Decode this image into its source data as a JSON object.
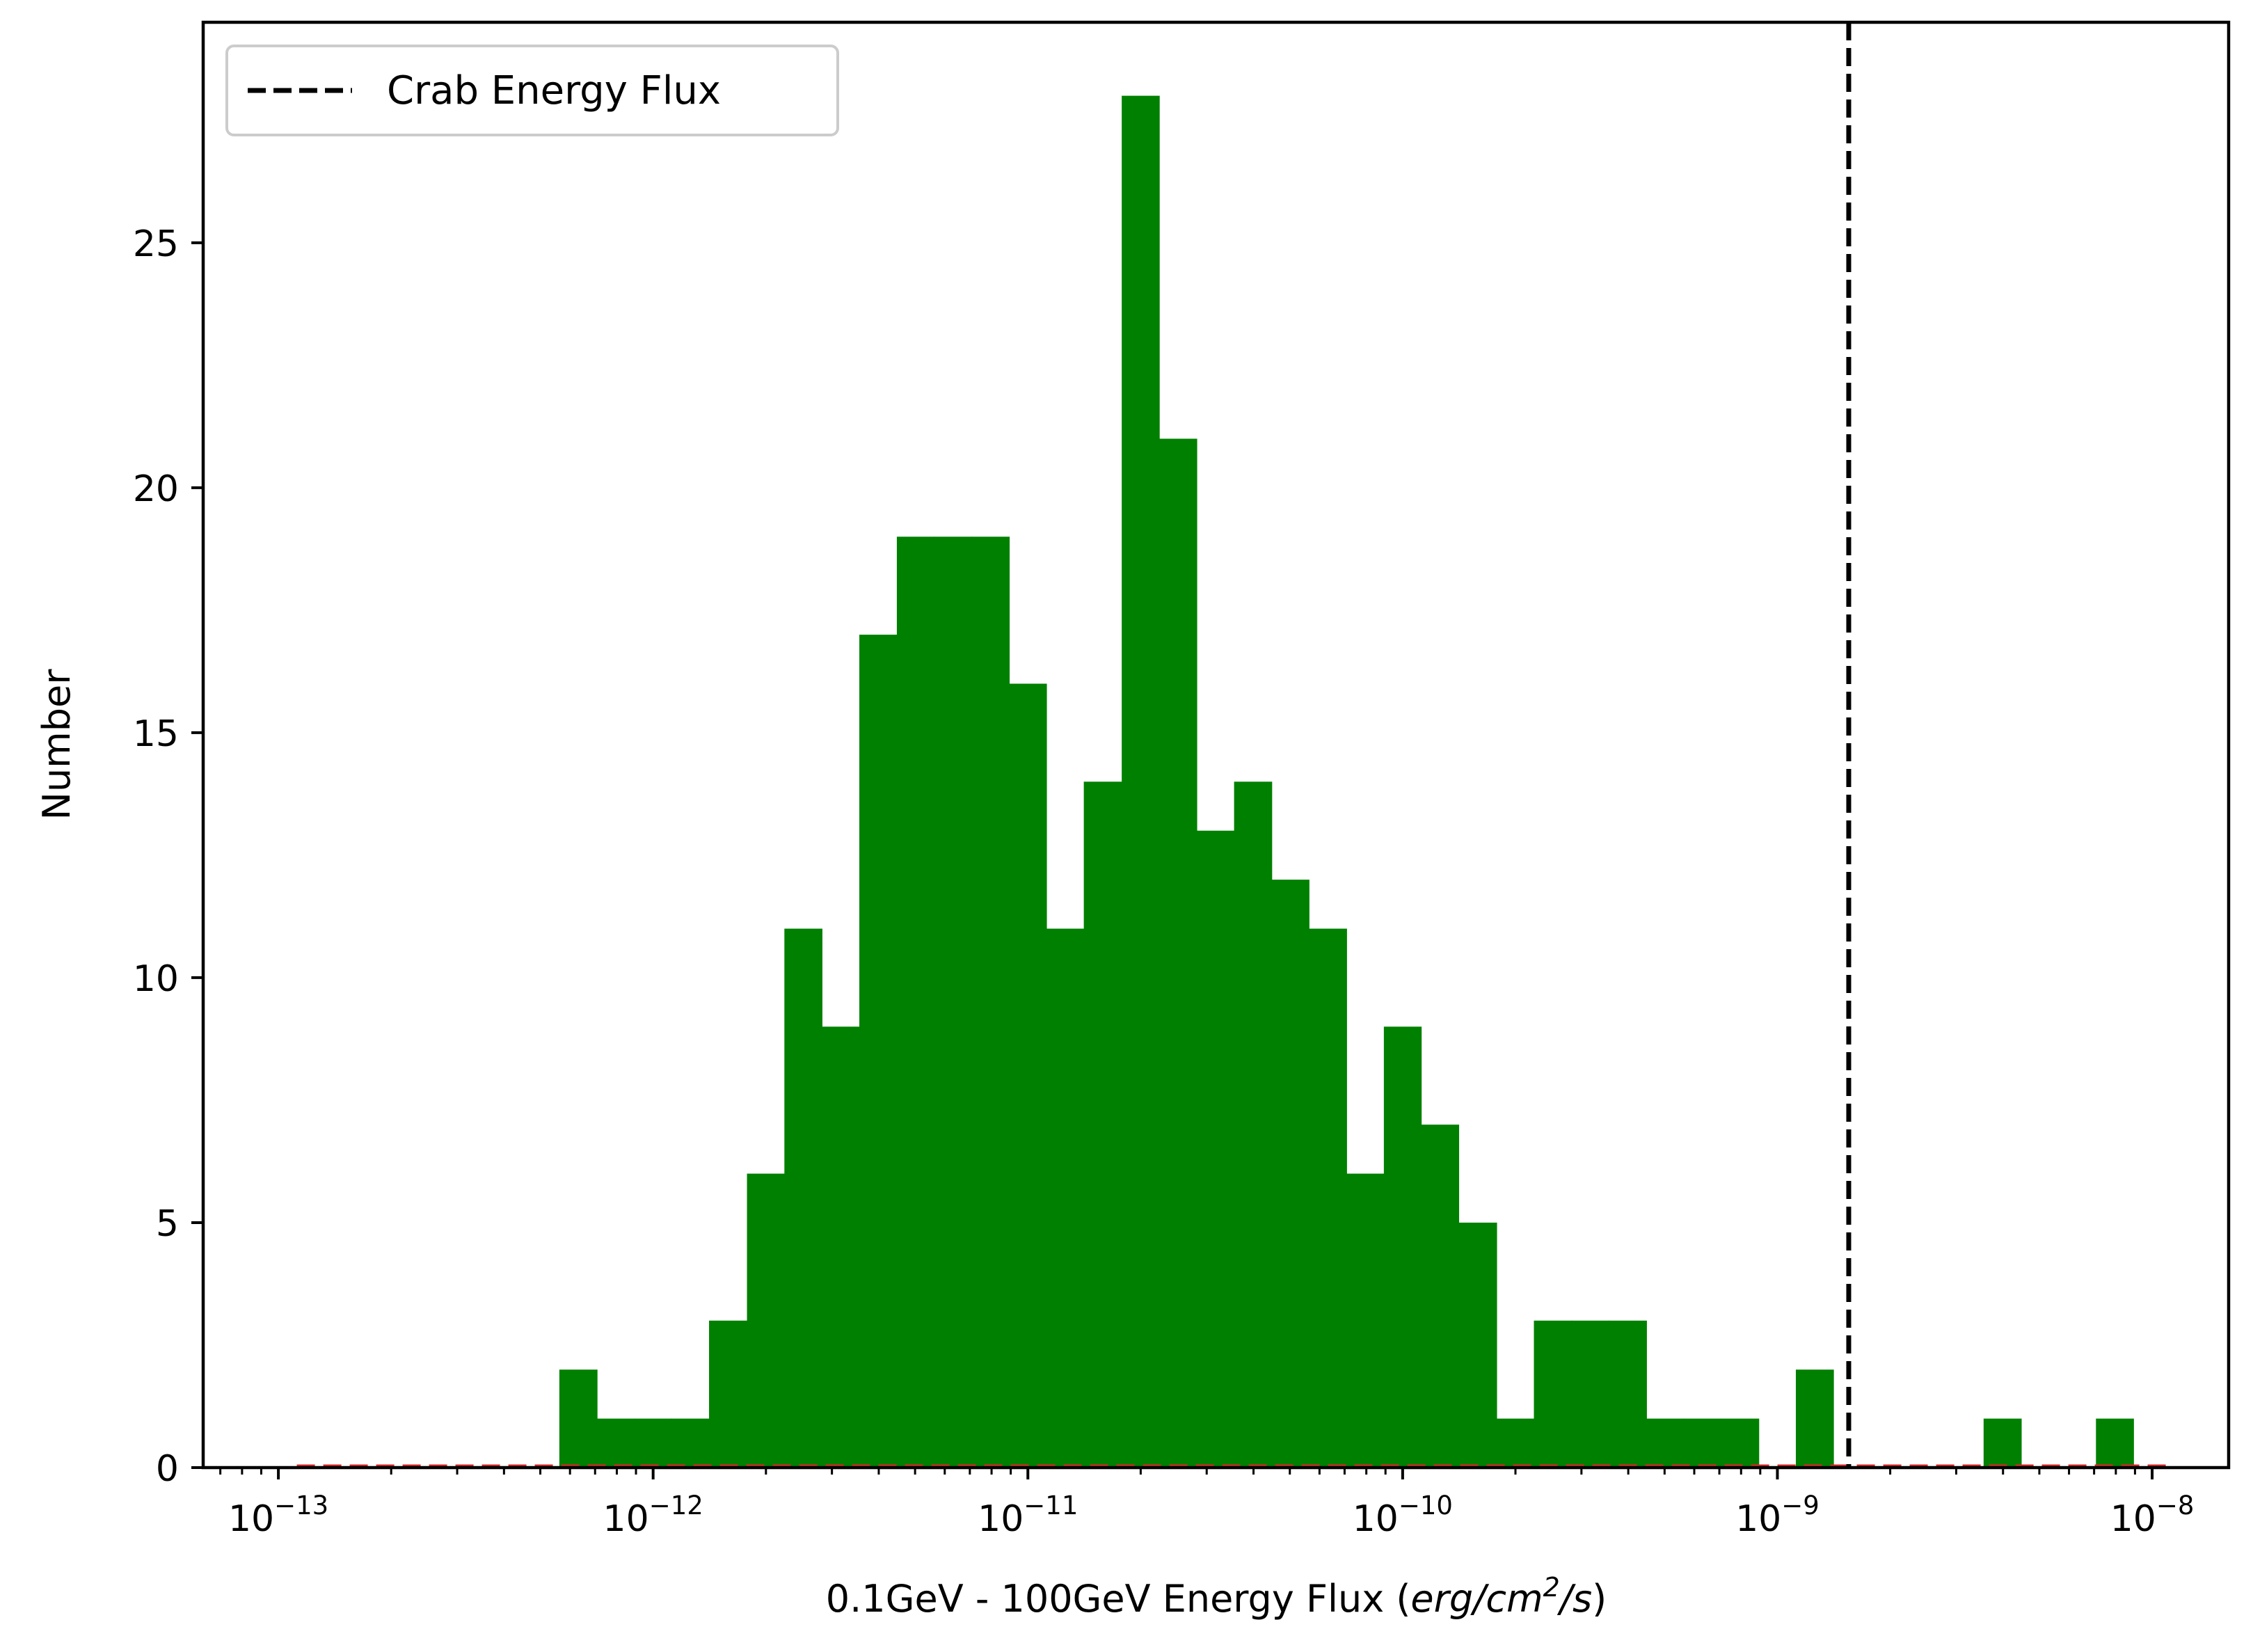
{
  "chart_data": {
    "type": "bar",
    "xlabel": {
      "text": "0.1GeV - 100GeV Energy Flux (",
      "math_parts": [
        "erg/cm",
        "2",
        "/s"
      ],
      "close": ")"
    },
    "ylabel": "Number",
    "xscale": "log",
    "xlim": [
      6.3e-14,
      1.6e-08
    ],
    "ylim": [
      0,
      29.5
    ],
    "x_ticks": [
      {
        "base": "10",
        "exp": "−13",
        "value": 1e-13
      },
      {
        "base": "10",
        "exp": "−12",
        "value": 1e-12
      },
      {
        "base": "10",
        "exp": "−11",
        "value": 1e-11
      },
      {
        "base": "10",
        "exp": "−10",
        "value": 1e-10
      },
      {
        "base": "10",
        "exp": "−9",
        "value": 1e-09
      },
      {
        "base": "10",
        "exp": "−8",
        "value": 1e-08
      }
    ],
    "y_ticks": [
      0,
      5,
      10,
      15,
      20,
      25
    ],
    "bar_color": "#008000",
    "bin_edges": [
      1.12e-13,
      1.41e-13,
      1.78e-13,
      2.24e-13,
      2.82e-13,
      3.55e-13,
      4.47e-13,
      5.62e-13,
      7.08e-13,
      8.91e-13,
      1.12e-12,
      1.41e-12,
      1.78e-12,
      2.24e-12,
      2.82e-12,
      3.55e-12,
      4.47e-12,
      5.62e-12,
      7.08e-12,
      8.91e-12,
      1.12e-11,
      1.41e-11,
      1.78e-11,
      2.24e-11,
      2.82e-11,
      3.55e-11,
      4.47e-11,
      5.62e-11,
      7.08e-11,
      8.91e-11,
      1.12e-10,
      1.41e-10,
      1.78e-10,
      2.24e-10,
      2.82e-10,
      3.55e-10,
      4.47e-10,
      5.62e-10,
      7.08e-10,
      8.91e-10,
      1.12e-09,
      1.41e-09,
      1.78e-09,
      2.24e-09,
      2.82e-09,
      3.55e-09,
      4.47e-09,
      5.62e-09,
      7.08e-09,
      8.91e-09,
      1.12e-08
    ],
    "counts": [
      0,
      0,
      0,
      0,
      0,
      0,
      0,
      2,
      1,
      1,
      1,
      3,
      6,
      11,
      9,
      17,
      19,
      19,
      19,
      16,
      11,
      14,
      28,
      21,
      13,
      14,
      12,
      11,
      6,
      9,
      7,
      5,
      1,
      3,
      3,
      3,
      1,
      1,
      1,
      0,
      2,
      0,
      0,
      0,
      0,
      1,
      0,
      0,
      1,
      0
    ],
    "zero_line_color": "#d62728",
    "vline": {
      "x": 1.55e-09,
      "label": "Crab Energy Flux",
      "color": "#000000",
      "style": "dashed"
    },
    "legend_position": "upper-left",
    "grid": false
  }
}
